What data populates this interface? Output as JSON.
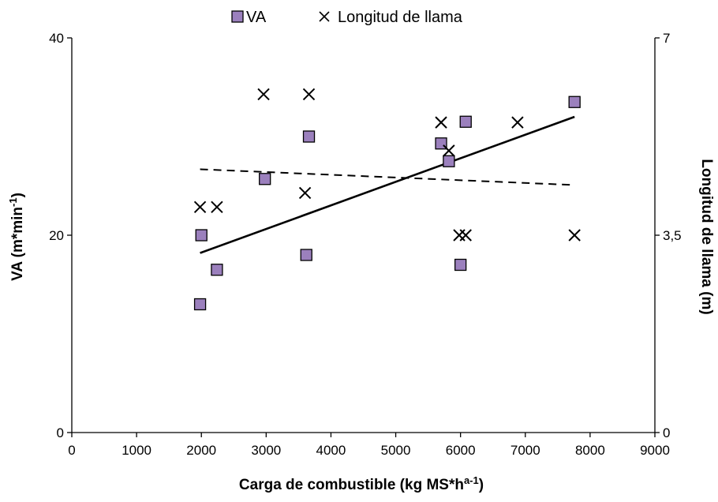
{
  "chart_data": {
    "type": "scatter",
    "title": "",
    "xlabel": {
      "main": "Carga de combustible (kg MS*h",
      "sup": "a-1",
      "end": ")"
    },
    "ylabel_left": {
      "main": "VA (m*min",
      "sup": "-1",
      "end": ")"
    },
    "ylabel_right": "Longitud de llama (m)",
    "xlim": [
      0,
      9000
    ],
    "ylim_left": [
      0,
      40
    ],
    "ylim_right": [
      0,
      7
    ],
    "x_ticks": [
      "0",
      "1000",
      "2000",
      "3000",
      "4000",
      "5000",
      "6000",
      "7000",
      "8000",
      "9000"
    ],
    "y_left_ticks": [
      "0",
      "20",
      "40"
    ],
    "y_right_ticks": [
      "0",
      "3,5",
      "7"
    ],
    "grid": false,
    "legend_position": "top-center",
    "series": [
      {
        "name": "VA",
        "marker": "square",
        "color": "#9b80bd",
        "axis": "left",
        "points": [
          [
            1980,
            13
          ],
          [
            2000,
            20
          ],
          [
            2240,
            16.5
          ],
          [
            2980,
            25.7
          ],
          [
            3620,
            18
          ],
          [
            3660,
            30
          ],
          [
            5700,
            29.3
          ],
          [
            5820,
            27.5
          ],
          [
            6000,
            17
          ],
          [
            6080,
            31.5
          ],
          [
            7760,
            33.5
          ]
        ],
        "trend": {
          "style": "solid",
          "from": [
            1980,
            18.2
          ],
          "to": [
            7760,
            32
          ]
        }
      },
      {
        "name": "Longitud de llama",
        "marker": "x",
        "color": "#000000",
        "axis": "right",
        "points": [
          [
            1980,
            4.0
          ],
          [
            2240,
            4.0
          ],
          [
            2960,
            6.0
          ],
          [
            3600,
            4.25
          ],
          [
            3660,
            6.0
          ],
          [
            5700,
            5.5
          ],
          [
            5820,
            5.0
          ],
          [
            5980,
            3.5
          ],
          [
            6080,
            3.5
          ],
          [
            6880,
            5.5
          ],
          [
            7760,
            3.5
          ]
        ],
        "trend": {
          "style": "dashed",
          "from": [
            1980,
            4.67
          ],
          "to": [
            7760,
            4.39
          ]
        }
      }
    ]
  }
}
